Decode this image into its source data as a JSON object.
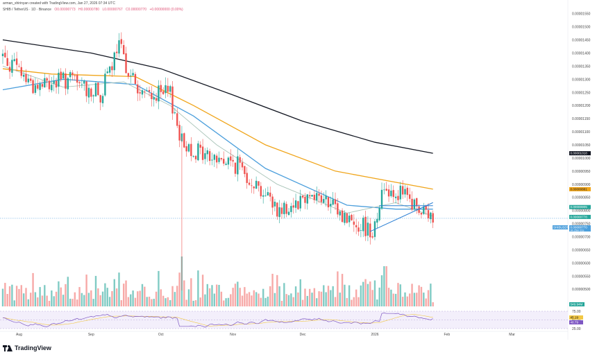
{
  "header": {
    "attribution": "arman_shirinyan created with TradingView.com, Jan 27, 2026 07:34 UTC",
    "symbol": "SHIB / TetherUS · 1D · Binance",
    "open": "O0.00000773",
    "high": "H0.00000780",
    "low": "L0.00000767",
    "close": "C0.00000770",
    "change": "+0.00000000 (0.00%)"
  },
  "footer": {
    "brand": "TradingView"
  },
  "colors": {
    "up": "#26a69a",
    "down": "#ef5350",
    "vol_up": "#80cbc4",
    "vol_down": "#f7a9a7",
    "ma_black": "#131722",
    "ma_orange": "#f0a51a",
    "ma_blue": "#4c9fdc",
    "ma_grey": "#a9c4b8",
    "rsi": "#7e57c2",
    "trendline": "#2a7fd4"
  },
  "chart_data": {
    "type": "candlestick",
    "symbol": "SHIB / TetherUS",
    "timeframe": "1D",
    "exchange": "Binance",
    "x_labels": [
      "Aug",
      "Sep",
      "Oct",
      "Nov",
      "Dec",
      "2026",
      "Feb",
      "Mar"
    ],
    "y_ticks": [
      "0.00001550",
      "0.00001500",
      "0.00001450",
      "0.00001400",
      "0.00001350",
      "0.00001300",
      "0.00001250",
      "0.00001200",
      "0.00001150",
      "0.00001100",
      "0.00001050",
      "0.00001000",
      "0.00000950",
      "0.00000900",
      "0.00000850",
      "0.00000800",
      "0.00000750",
      "0.00000700",
      "0.00000650",
      "0.00000600",
      "0.00000550",
      "0.00000500"
    ],
    "ylim": [
      4.45e-06,
      1.565e-05
    ],
    "series_anchors": [
      {
        "date": "2025-07-25",
        "price": 1.39e-05
      },
      {
        "date": "2025-08-08",
        "price": 1.27e-05
      },
      {
        "date": "2025-08-22",
        "price": 1.3e-05
      },
      {
        "date": "2025-09-05",
        "price": 1.24e-05
      },
      {
        "date": "2025-09-13",
        "price": 1.42e-05
      },
      {
        "date": "2025-09-22",
        "price": 1.24e-05
      },
      {
        "date": "2025-10-05",
        "price": 1.24e-05
      },
      {
        "date": "2025-10-10",
        "price": 1.06e-05
      },
      {
        "date": "2025-10-20",
        "price": 1.01e-05
      },
      {
        "date": "2025-11-04",
        "price": 9.7e-06
      },
      {
        "date": "2025-11-21",
        "price": 8e-06
      },
      {
        "date": "2025-12-05",
        "price": 8.7e-06
      },
      {
        "date": "2025-12-18",
        "price": 7.8e-06
      },
      {
        "date": "2025-12-31",
        "price": 7.25e-06
      },
      {
        "date": "2026-01-05",
        "price": 8.9e-06
      },
      {
        "date": "2026-01-13",
        "price": 8.6e-06
      },
      {
        "date": "2026-01-21",
        "price": 7.9e-06
      },
      {
        "date": "2026-01-26",
        "price": 7.7e-06
      }
    ],
    "moving_averages": [
      {
        "color_key": "ma_black",
        "label": "0.00001018",
        "points": [
          [
            "2025-07-25",
            1.45e-05
          ],
          [
            "2025-09-01",
            1.4e-05
          ],
          [
            "2025-10-01",
            1.34e-05
          ],
          [
            "2025-11-01",
            1.24e-05
          ],
          [
            "2025-12-01",
            1.14e-05
          ],
          [
            "2026-01-01",
            1.06e-05
          ],
          [
            "2026-01-26",
            1.018e-05
          ]
        ]
      },
      {
        "color_key": "ma_orange",
        "label": "0.00000881",
        "points": [
          [
            "2025-07-25",
            1.34e-05
          ],
          [
            "2025-08-15",
            1.32e-05
          ],
          [
            "2025-09-20",
            1.31e-05
          ],
          [
            "2025-10-15",
            1.2e-05
          ],
          [
            "2025-11-15",
            1.05e-05
          ],
          [
            "2025-12-15",
            9.5e-06
          ],
          [
            "2026-01-26",
            8.81e-06
          ]
        ]
      },
      {
        "color_key": "ma_blue",
        "label": "0.00000805",
        "points": [
          [
            "2025-07-25",
            1.26e-05
          ],
          [
            "2025-08-20",
            1.3e-05
          ],
          [
            "2025-09-20",
            1.28e-05
          ],
          [
            "2025-10-15",
            1.16e-05
          ],
          [
            "2025-11-15",
            9.6e-06
          ],
          [
            "2025-12-20",
            8.2e-06
          ],
          [
            "2026-01-10",
            8.05e-06
          ],
          [
            "2026-01-26",
            8.05e-06
          ]
        ]
      },
      {
        "color_key": "ma_grey",
        "label": "0.00000778",
        "points": [
          [
            "2025-07-25",
            1.35e-05
          ],
          [
            "2025-08-20",
            1.27e-05
          ],
          [
            "2025-09-15",
            1.29e-05
          ],
          [
            "2025-10-05",
            1.2e-05
          ],
          [
            "2025-10-25",
            1.05e-05
          ],
          [
            "2025-11-20",
            9e-06
          ],
          [
            "2025-12-20",
            7.9e-06
          ],
          [
            "2026-01-10",
            8.3e-06
          ],
          [
            "2026-01-26",
            7.78e-06
          ]
        ]
      }
    ],
    "price_labels": [
      {
        "text": "0.00001018",
        "color_key": "ma_black"
      },
      {
        "text": "0.00000881",
        "color_key": "ma_orange"
      },
      {
        "text": "0.00000805",
        "color_key": "up"
      },
      {
        "text": "0.00000778",
        "color_key": "up"
      },
      {
        "text": "0.00000770",
        "sub": "9h 25m 01s",
        "tag": "SHIBUSDT",
        "color_key": "ma_blue"
      }
    ],
    "trendline": {
      "lower": [
        [
          "2025-12-30",
          7.2e-06
        ],
        [
          "2026-01-26",
          8.3e-06
        ]
      ],
      "upper": [
        [
          "2026-01-03",
          8.18e-06
        ],
        [
          "2026-01-26",
          8.18e-06
        ]
      ]
    },
    "volume_label": "549.94M",
    "rsi": {
      "levels": [
        75,
        50,
        25
      ],
      "labels": [
        "75.00",
        "50.00",
        "25.00"
      ],
      "rsi_label": "40.79",
      "ma_label": "45.19"
    }
  }
}
